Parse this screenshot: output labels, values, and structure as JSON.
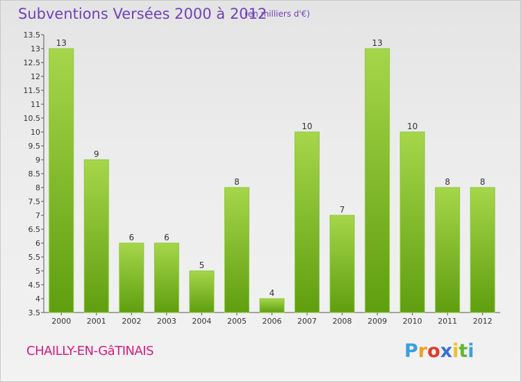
{
  "header": {
    "title": "Subventions Versées 2000 à 2012",
    "unit": "(en milliers d'€)"
  },
  "footer": {
    "commune": "CHAILLY-EN-GâTINAIS",
    "logo_letters": [
      "P",
      "r",
      "o",
      "x",
      "i",
      "t",
      "i"
    ],
    "logo_colors": [
      "#3aa0e0",
      "#f0a020",
      "#e03a2a",
      "#3a70d0",
      "#f0c020",
      "#60b830",
      "#3aa0e0"
    ]
  },
  "chart_data": {
    "type": "bar",
    "categories": [
      "2000",
      "2001",
      "2002",
      "2003",
      "2004",
      "2005",
      "2006",
      "2007",
      "2008",
      "2009",
      "2010",
      "2011",
      "2012"
    ],
    "values": [
      13,
      9,
      6,
      6,
      5,
      8,
      4,
      10,
      7,
      13,
      10,
      8,
      8
    ],
    "ylim": [
      3.5,
      13.5
    ],
    "yticks": [
      "3.5",
      "4",
      "4.5",
      "5",
      "5.5",
      "6",
      "6.5",
      "7",
      "7.5",
      "8",
      "8.5",
      "9",
      "9.5",
      "10",
      "10.5",
      "11",
      "11.5",
      "12",
      "12.5",
      "13",
      "13.5"
    ],
    "bar_color_light": "#a6d64a",
    "bar_color_dark": "#5f9e0f",
    "grid": false,
    "legend": "none"
  }
}
